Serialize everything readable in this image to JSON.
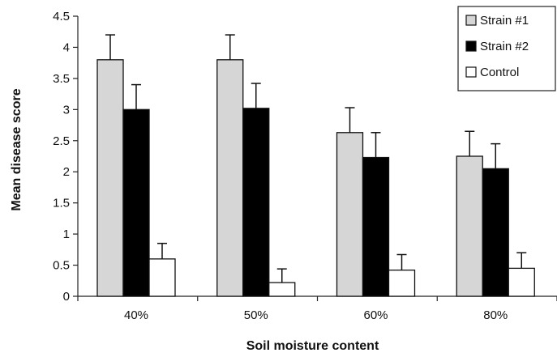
{
  "chart_data": {
    "type": "bar",
    "title": "",
    "xlabel": "Soil moisture content",
    "ylabel": "Mean disease score",
    "categories": [
      "40%",
      "50%",
      "60%",
      "80%"
    ],
    "ylim": [
      0,
      4.5
    ],
    "yticks": [
      "0",
      "0.5",
      "1",
      "1.5",
      "2",
      "2.5",
      "3",
      "3.5",
      "4",
      "4.5"
    ],
    "grid": false,
    "legend_position": "top-right",
    "series": [
      {
        "name": "Strain #1",
        "color": "#d6d6d6",
        "values": [
          3.8,
          3.8,
          2.63,
          2.25
        ],
        "errors": [
          0.4,
          0.4,
          0.4,
          0.4
        ]
      },
      {
        "name": "Strain #2",
        "color": "#000000",
        "values": [
          3.0,
          3.02,
          2.23,
          2.05
        ],
        "errors": [
          0.4,
          0.4,
          0.4,
          0.4
        ]
      },
      {
        "name": "Control",
        "color": "#ffffff",
        "values": [
          0.6,
          0.22,
          0.42,
          0.45
        ],
        "errors": [
          0.25,
          0.22,
          0.25,
          0.25
        ]
      }
    ]
  }
}
